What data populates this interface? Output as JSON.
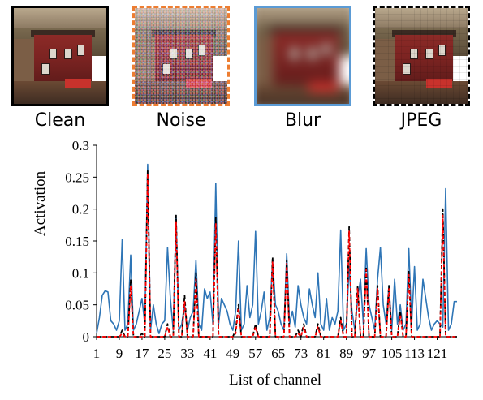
{
  "thumbnails": [
    {
      "label": "Clean"
    },
    {
      "label": "Noise"
    },
    {
      "label": "Blur"
    },
    {
      "label": "JPEG"
    }
  ],
  "colors": {
    "clean_border": "#000000",
    "noise_border": "#ed7d31",
    "blur_border": "#5b9bd5",
    "jpeg_border": "#000000"
  },
  "chart_data": {
    "type": "line",
    "xlabel": "List of channel",
    "ylabel": "Activation",
    "ylim": [
      0,
      0.3
    ],
    "yticks": [
      "0",
      "0.05",
      "0.1",
      "0.15",
      "0.2",
      "0.25",
      "0.3"
    ],
    "xticks": [
      "1",
      "9",
      "17",
      "25",
      "33",
      "41",
      "49",
      "57",
      "65",
      "73",
      "81",
      "89",
      "97",
      "105",
      "113",
      "121"
    ],
    "xtick_values": [
      1,
      9,
      17,
      25,
      33,
      41,
      49,
      57,
      65,
      73,
      81,
      89,
      97,
      105,
      113,
      121
    ],
    "xlim": [
      1,
      128
    ],
    "grid": false,
    "series": [
      {
        "color": "#2e75b6",
        "dash": "solid",
        "x": [
          1,
          2,
          3,
          4,
          5,
          6,
          7,
          8,
          9,
          10,
          11,
          12,
          13,
          14,
          15,
          16,
          17,
          18,
          19,
          20,
          21,
          22,
          23,
          24,
          25,
          26,
          27,
          28,
          29,
          30,
          31,
          32,
          33,
          34,
          35,
          36,
          37,
          38,
          39,
          40,
          41,
          42,
          43,
          44,
          45,
          46,
          47,
          48,
          49,
          50,
          51,
          52,
          53,
          54,
          55,
          56,
          57,
          58,
          59,
          60,
          61,
          62,
          63,
          64,
          65,
          66,
          67,
          68,
          69,
          70,
          71,
          72,
          73,
          74,
          75,
          76,
          77,
          78,
          79,
          80,
          81,
          82,
          83,
          84,
          85,
          86,
          87,
          88,
          89,
          90,
          91,
          92,
          93,
          94,
          95,
          96,
          97,
          98,
          99,
          100,
          101,
          102,
          103,
          104,
          105,
          106,
          107,
          108,
          109,
          110,
          111,
          112,
          113,
          114,
          115,
          116,
          117,
          118,
          119,
          120,
          121,
          122,
          123,
          124,
          125,
          126,
          127,
          128
        ],
        "y": [
          0.005,
          0.03,
          0.065,
          0.072,
          0.07,
          0.025,
          0.02,
          0.01,
          0.025,
          0.152,
          0.01,
          0.02,
          0.128,
          0.01,
          0.02,
          0.04,
          0.06,
          0.02,
          0.27,
          0.01,
          0.05,
          0.02,
          0.005,
          0.02,
          0.025,
          0.14,
          0.06,
          0.01,
          0.19,
          0.01,
          0.02,
          0.05,
          0.01,
          0.03,
          0.04,
          0.12,
          0.02,
          0.01,
          0.075,
          0.06,
          0.07,
          0.02,
          0.24,
          0.02,
          0.06,
          0.05,
          0.04,
          0.02,
          0.01,
          0.04,
          0.15,
          0.01,
          0.02,
          0.08,
          0.03,
          0.05,
          0.165,
          0.02,
          0.04,
          0.07,
          0.01,
          0.03,
          0.12,
          0.05,
          0.04,
          0.02,
          0.01,
          0.13,
          0.02,
          0.04,
          0.015,
          0.08,
          0.05,
          0.03,
          0.02,
          0.075,
          0.05,
          0.03,
          0.1,
          0.02,
          0.01,
          0.06,
          0.01,
          0.03,
          0.02,
          0.04,
          0.167,
          0.01,
          0.02,
          0.11,
          0.04,
          0.01,
          0.06,
          0.09,
          0.02,
          0.138,
          0.05,
          0.03,
          0.01,
          0.09,
          0.14,
          0.05,
          0.02,
          0.08,
          0.01,
          0.09,
          0.02,
          0.05,
          0.01,
          0.02,
          0.138,
          0.02,
          0.11,
          0.01,
          0.02,
          0.09,
          0.06,
          0.03,
          0.01,
          0.02,
          0.025,
          0.02,
          0.015,
          0.232,
          0.01,
          0.02,
          0.055,
          0.055
        ]
      },
      {
        "color": "#000000",
        "dash": "dashed",
        "x": [
          1,
          2,
          3,
          4,
          5,
          6,
          7,
          8,
          9,
          10,
          11,
          12,
          13,
          14,
          15,
          16,
          17,
          18,
          19,
          20,
          21,
          22,
          23,
          24,
          25,
          26,
          27,
          28,
          29,
          30,
          31,
          32,
          33,
          34,
          35,
          36,
          37,
          38,
          39,
          40,
          41,
          42,
          43,
          44,
          45,
          46,
          47,
          48,
          49,
          50,
          51,
          52,
          53,
          54,
          55,
          56,
          57,
          58,
          59,
          60,
          61,
          62,
          63,
          64,
          65,
          66,
          67,
          68,
          69,
          70,
          71,
          72,
          73,
          74,
          75,
          76,
          77,
          78,
          79,
          80,
          81,
          82,
          83,
          84,
          85,
          86,
          87,
          88,
          89,
          90,
          91,
          92,
          93,
          94,
          95,
          96,
          97,
          98,
          99,
          100,
          101,
          102,
          103,
          104,
          105,
          106,
          107,
          108,
          109,
          110,
          111,
          112,
          113,
          114,
          115,
          116,
          117,
          118,
          119,
          120,
          121,
          122,
          123,
          124,
          125,
          126,
          127,
          128
        ],
        "y": [
          0,
          0,
          0,
          0,
          0,
          0,
          0,
          0,
          0,
          0.01,
          0,
          0,
          0.09,
          0,
          0,
          0,
          0.005,
          0,
          0.26,
          0,
          0,
          0,
          0,
          0,
          0,
          0.02,
          0,
          0,
          0.19,
          0,
          0,
          0.065,
          0,
          0,
          0,
          0.1,
          0,
          0,
          0,
          0,
          0,
          0,
          0.187,
          0,
          0,
          0,
          0,
          0,
          0,
          0.01,
          0.05,
          0,
          0,
          0,
          0,
          0,
          0.02,
          0,
          0,
          0,
          0,
          0,
          0.125,
          0,
          0,
          0,
          0,
          0.12,
          0,
          0,
          0,
          0.01,
          0,
          0.02,
          0,
          0,
          0,
          0,
          0.02,
          0,
          0,
          0,
          0,
          0,
          0,
          0,
          0.03,
          0,
          0,
          0.172,
          0,
          0,
          0.08,
          0,
          0,
          0.11,
          0,
          0,
          0,
          0.08,
          0,
          0,
          0,
          0.08,
          0,
          0,
          0,
          0.04,
          0,
          0,
          0.102,
          0,
          0,
          0,
          0,
          0,
          0,
          0,
          0,
          0,
          0,
          0,
          0.2,
          0,
          0,
          0,
          0,
          0
        ]
      },
      {
        "color": "#ff0000",
        "dash": "dashed",
        "x": [
          1,
          2,
          3,
          4,
          5,
          6,
          7,
          8,
          9,
          10,
          11,
          12,
          13,
          14,
          15,
          16,
          17,
          18,
          19,
          20,
          21,
          22,
          23,
          24,
          25,
          26,
          27,
          28,
          29,
          30,
          31,
          32,
          33,
          34,
          35,
          36,
          37,
          38,
          39,
          40,
          41,
          42,
          43,
          44,
          45,
          46,
          47,
          48,
          49,
          50,
          51,
          52,
          53,
          54,
          55,
          56,
          57,
          58,
          59,
          60,
          61,
          62,
          63,
          64,
          65,
          66,
          67,
          68,
          69,
          70,
          71,
          72,
          73,
          74,
          75,
          76,
          77,
          78,
          79,
          80,
          81,
          82,
          83,
          84,
          85,
          86,
          87,
          88,
          89,
          90,
          91,
          92,
          93,
          94,
          95,
          96,
          97,
          98,
          99,
          100,
          101,
          102,
          103,
          104,
          105,
          106,
          107,
          108,
          109,
          110,
          111,
          112,
          113,
          114,
          115,
          116,
          117,
          118,
          119,
          120,
          121,
          122,
          123,
          124,
          125,
          126,
          127,
          128
        ],
        "y": [
          0,
          0,
          0,
          0,
          0,
          0,
          0,
          0,
          0,
          0.005,
          0,
          0,
          0.08,
          0,
          0,
          0,
          0,
          0,
          0.255,
          0,
          0,
          0,
          0,
          0,
          0,
          0.015,
          0,
          0,
          0.18,
          0,
          0,
          0.055,
          0,
          0,
          0,
          0.09,
          0,
          0,
          0,
          0,
          0,
          0,
          0.178,
          0,
          0,
          0,
          0,
          0,
          0,
          0.005,
          0.045,
          0,
          0,
          0,
          0,
          0,
          0.015,
          0,
          0,
          0,
          0,
          0,
          0.118,
          0,
          0,
          0,
          0,
          0.115,
          0,
          0,
          0,
          0.005,
          0,
          0.015,
          0,
          0,
          0,
          0,
          0.015,
          0,
          0,
          0,
          0,
          0,
          0,
          0,
          0.025,
          0,
          0,
          0.165,
          0,
          0,
          0.075,
          0,
          0,
          0.105,
          0,
          0,
          0,
          0.075,
          0,
          0,
          0,
          0.075,
          0,
          0,
          0,
          0.035,
          0,
          0,
          0.097,
          0,
          0,
          0,
          0,
          0,
          0,
          0,
          0,
          0,
          0,
          0,
          0.19,
          0,
          0,
          0,
          0,
          0
        ]
      }
    ]
  }
}
